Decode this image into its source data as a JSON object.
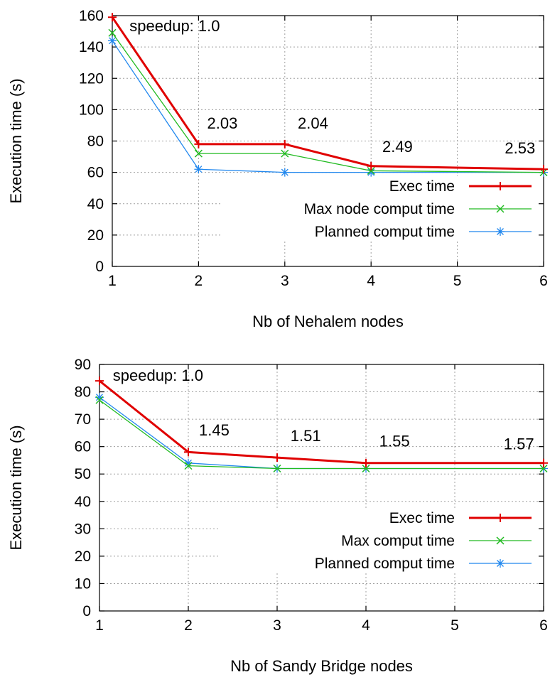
{
  "chart_data": [
    {
      "type": "line",
      "xlabel": "Nb of Nehalem nodes",
      "ylabel": "Execution time (s)",
      "xlim": [
        1,
        6
      ],
      "ylim": [
        0,
        160
      ],
      "xticks": [
        "1",
        "2",
        "3",
        "4",
        "5",
        "6"
      ],
      "yticks": [
        "0",
        "20",
        "40",
        "60",
        "80",
        "100",
        "120",
        "140",
        "160"
      ],
      "grid": true,
      "legend_position": "right-middle",
      "series": [
        {
          "name": "Exec time",
          "color": "#e00000",
          "marker": "plus",
          "x": [
            1,
            2,
            3,
            4,
            6
          ],
          "y": [
            159,
            78,
            78,
            64,
            62
          ]
        },
        {
          "name": "Max node comput time",
          "color": "#22bb22",
          "marker": "cross",
          "x": [
            1,
            2,
            3,
            4,
            6
          ],
          "y": [
            149,
            72,
            72,
            61,
            60
          ]
        },
        {
          "name": "Planned comput time",
          "color": "#2288ee",
          "marker": "star",
          "x": [
            1,
            2,
            3,
            4,
            6
          ],
          "y": [
            144,
            62,
            60,
            60,
            60
          ]
        }
      ],
      "annotations": [
        {
          "text": "speedup: 1.0",
          "x": 1.2,
          "y": 150
        },
        {
          "text": "2.03",
          "x": 2.1,
          "y": 88
        },
        {
          "text": "2.04",
          "x": 3.15,
          "y": 88
        },
        {
          "text": "2.49",
          "x": 4.13,
          "y": 73
        },
        {
          "text": "2.53",
          "x": 5.55,
          "y": 72
        }
      ]
    },
    {
      "type": "line",
      "xlabel": "Nb of Sandy Bridge nodes",
      "ylabel": "Execution time (s)",
      "xlim": [
        1,
        6
      ],
      "ylim": [
        0,
        90
      ],
      "xticks": [
        "1",
        "2",
        "3",
        "4",
        "5",
        "6"
      ],
      "yticks": [
        "0",
        "10",
        "20",
        "30",
        "40",
        "50",
        "60",
        "70",
        "80",
        "90"
      ],
      "grid": true,
      "legend_position": "right-middle",
      "series": [
        {
          "name": "Exec time",
          "color": "#e00000",
          "marker": "plus",
          "x": [
            1,
            2,
            3,
            4,
            6
          ],
          "y": [
            84,
            58,
            56,
            54,
            54
          ]
        },
        {
          "name": "Max comput time",
          "color": "#22bb22",
          "marker": "cross",
          "x": [
            1,
            2,
            3,
            4,
            6
          ],
          "y": [
            77,
            53,
            52,
            52,
            52
          ]
        },
        {
          "name": "Planned comput time",
          "color": "#2288ee",
          "marker": "star",
          "x": [
            1,
            2,
            3,
            4,
            6
          ],
          "y": [
            78,
            54,
            52,
            52,
            52
          ]
        }
      ],
      "annotations": [
        {
          "text": "speedup: 1.0",
          "x": 1.15,
          "y": 84
        },
        {
          "text": "1.45",
          "x": 2.12,
          "y": 64
        },
        {
          "text": "1.51",
          "x": 3.15,
          "y": 62
        },
        {
          "text": "1.55",
          "x": 4.15,
          "y": 60
        },
        {
          "text": "1.57",
          "x": 5.55,
          "y": 59
        }
      ]
    }
  ]
}
